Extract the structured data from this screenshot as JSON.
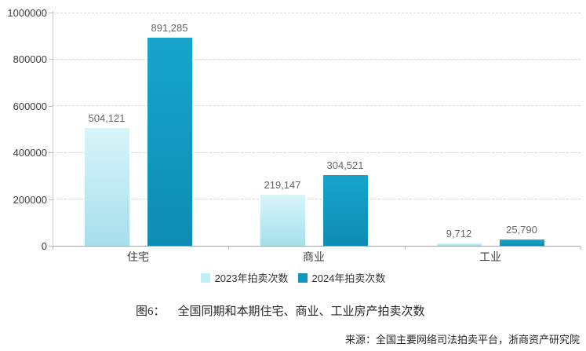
{
  "chart_data": {
    "type": "bar",
    "categories": [
      "住宅",
      "商业",
      "工业"
    ],
    "category_keys": [
      "residential",
      "commercial",
      "industrial"
    ],
    "series": [
      {
        "name": "2023年拍卖次数",
        "key": "2023",
        "values": [
          504121,
          219147,
          9712
        ],
        "labels": [
          "504,121",
          "219,147",
          "9,712"
        ]
      },
      {
        "name": "2024年拍卖次数",
        "key": "2024",
        "values": [
          891285,
          304521,
          25790
        ],
        "labels": [
          "891,285",
          "304,521",
          "25,790"
        ]
      }
    ],
    "title": "",
    "xlabel": "",
    "ylabel": "",
    "ylim": [
      0,
      1000000
    ],
    "ytick_step": 200000,
    "yticks": [
      "1000000",
      "800000",
      "600000",
      "400000",
      "200000",
      "0"
    ],
    "grid": "horizontal-dashed",
    "legend_position": "bottom-center"
  },
  "colors": {
    "series_2023_gradient_top": "#d8f5f9",
    "series_2023_gradient_bottom": "#a6dfec",
    "series_2023_legend": "#bfeef5",
    "series_2024_gradient_top": "#17a5cc",
    "series_2024_gradient_bottom": "#0d8cb5",
    "series_2024_legend": "#1295be",
    "gridline": "#d9d9d9",
    "axis_line": "#a6a6a6",
    "tick_label": "#3d3d3d",
    "data_label": "#666666"
  },
  "caption": {
    "figure_label": "图6：",
    "title": "全国同期和本期住宅、商业、工业房产拍卖次数"
  },
  "source": "来源：全国主要网络司法拍卖平台，浙商资产研究院"
}
